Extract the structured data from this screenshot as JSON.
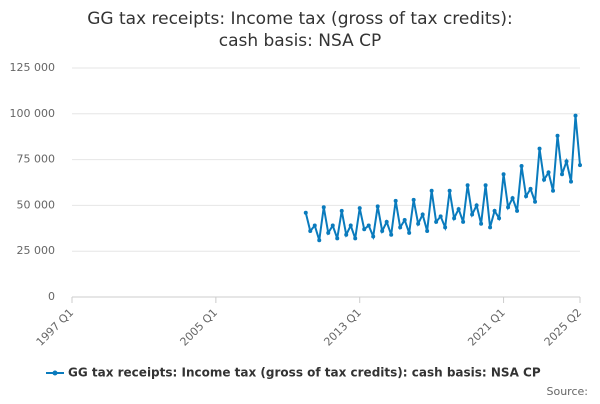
{
  "chart_data": {
    "type": "line",
    "title": "GG tax receipts: Income tax (gross of tax credits): cash basis: NSA CP",
    "categories": [
      "1997 Q1",
      null,
      null,
      null,
      null,
      null,
      null,
      null,
      null,
      null,
      null,
      null,
      null,
      null,
      null,
      null,
      null,
      null,
      null,
      null,
      null,
      null,
      null,
      null,
      null,
      null,
      null,
      null,
      null,
      null,
      null,
      null,
      "2005 Q1",
      null,
      null,
      null,
      null,
      null,
      null,
      null,
      null,
      null,
      null,
      null,
      null,
      null,
      null,
      null,
      null,
      null,
      null,
      null,
      null,
      null,
      null,
      null,
      null,
      null,
      null,
      null,
      null,
      null,
      null,
      null,
      "2013 Q1",
      null,
      null,
      null,
      null,
      null,
      null,
      null,
      null,
      null,
      null,
      null,
      null,
      null,
      null,
      null,
      null,
      null,
      null,
      null,
      null,
      null,
      null,
      null,
      null,
      null,
      null,
      null,
      null,
      null,
      null,
      null,
      "2021 Q1",
      null,
      null,
      null,
      null,
      null,
      null,
      null,
      null,
      null,
      null,
      null,
      null,
      null,
      null,
      null,
      null,
      "2025 Q2"
    ],
    "series": [
      {
        "name": "GG tax receipts: Income tax (gross of tax credits): cash basis: NSA CP",
        "color": "#0a7bbd",
        "values": [
          null,
          null,
          null,
          null,
          null,
          null,
          null,
          null,
          null,
          null,
          null,
          null,
          null,
          null,
          null,
          null,
          null,
          null,
          null,
          null,
          null,
          null,
          null,
          null,
          null,
          null,
          null,
          null,
          null,
          null,
          null,
          null,
          null,
          null,
          null,
          null,
          null,
          null,
          null,
          null,
          null,
          null,
          null,
          null,
          null,
          null,
          null,
          null,
          null,
          null,
          null,
          null,
          46000,
          36000,
          39000,
          31000,
          49000,
          35000,
          39000,
          32000,
          47000,
          34000,
          39000,
          32000,
          48500,
          37000,
          39000,
          33000,
          49500,
          36000,
          41000,
          34000,
          52500,
          38000,
          42000,
          35000,
          53000,
          40000,
          45000,
          36000,
          58000,
          41000,
          44000,
          38000,
          58000,
          43000,
          48000,
          41000,
          61000,
          45000,
          50000,
          40000,
          61000,
          38000,
          47000,
          43000,
          67000,
          49000,
          54000,
          47000,
          71500,
          55000,
          59000,
          52000,
          81000,
          64000,
          68000,
          58000,
          88000,
          67000,
          74000,
          63000,
          99000,
          72000
        ]
      }
    ],
    "ylim": [
      0,
      125000
    ],
    "yticks": [
      0,
      {
        "value": 25000,
        "label": "25 000"
      },
      {
        "value": 50000,
        "label": "50 000"
      },
      {
        "value": 75000,
        "label": "75 000"
      },
      {
        "value": 100000,
        "label": "100 000"
      },
      {
        "value": 125000,
        "label": "125 000"
      }
    ],
    "grid": true,
    "legend": "bottom",
    "source": "Source:"
  }
}
